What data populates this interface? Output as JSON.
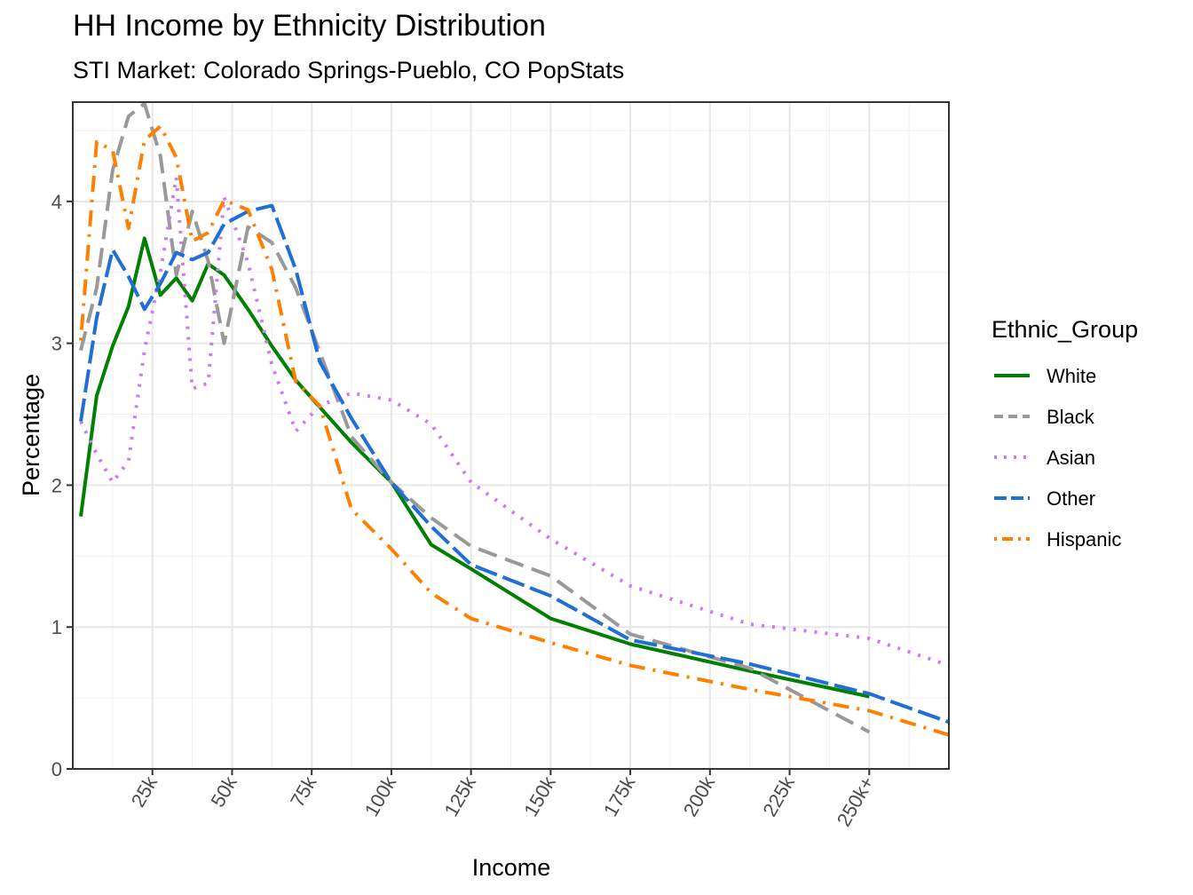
{
  "chart_data": {
    "type": "line",
    "title": "HH Income by Ethnicity Distribution",
    "subtitle": "STI Market: Colorado Springs-Pueblo, CO PopStats",
    "xlabel": "Income",
    "ylabel": "Percentage",
    "xlim": [
      0,
      250
    ],
    "ylim": [
      0,
      4.7
    ],
    "x_ticks": [
      {
        "value": 25,
        "label": "25k"
      },
      {
        "value": 50,
        "label": "50k"
      },
      {
        "value": 75,
        "label": "75k"
      },
      {
        "value": 100,
        "label": "100k"
      },
      {
        "value": 125,
        "label": "125k"
      },
      {
        "value": 150,
        "label": "150k"
      },
      {
        "value": 175,
        "label": "175k"
      },
      {
        "value": 200,
        "label": "200k"
      },
      {
        "value": 225,
        "label": "225k"
      },
      {
        "value": 250,
        "label": "250k+"
      }
    ],
    "y_ticks": [
      {
        "value": 0,
        "label": "0"
      },
      {
        "value": 1,
        "label": "1"
      },
      {
        "value": 2,
        "label": "2"
      },
      {
        "value": 3,
        "label": "3"
      },
      {
        "value": 4,
        "label": "4"
      }
    ],
    "grid": true,
    "legend_title": "Ethnic_Group",
    "legend_position": "right",
    "series": [
      {
        "name": "White",
        "color": "#008000",
        "dash": "solid",
        "points": [
          [
            2.5,
            1.78
          ],
          [
            7.5,
            2.63
          ],
          [
            12.5,
            2.98
          ],
          [
            17.5,
            3.26
          ],
          [
            22.5,
            3.74
          ],
          [
            27.5,
            3.34
          ],
          [
            32.5,
            3.46
          ],
          [
            37.5,
            3.3
          ],
          [
            42.5,
            3.56
          ],
          [
            47.5,
            3.48
          ],
          [
            55,
            3.24
          ],
          [
            62.5,
            2.98
          ],
          [
            70,
            2.74
          ],
          [
            77.5,
            2.55
          ],
          [
            87.5,
            2.3
          ],
          [
            100,
            2.02
          ],
          [
            112.5,
            1.58
          ],
          [
            125,
            1.41
          ],
          [
            150,
            1.06
          ],
          [
            175,
            0.88
          ],
          [
            212.5,
            0.69
          ],
          [
            250,
            0.51
          ]
        ]
      },
      {
        "name": "Black",
        "color": "#999999",
        "dash": "dashed",
        "points": [
          [
            2.5,
            2.95
          ],
          [
            7.5,
            3.39
          ],
          [
            12.5,
            4.22
          ],
          [
            17.5,
            4.6
          ],
          [
            22.5,
            4.69
          ],
          [
            27.5,
            4.32
          ],
          [
            32.5,
            3.48
          ],
          [
            37.5,
            3.93
          ],
          [
            42.5,
            3.58
          ],
          [
            47.5,
            3.0
          ],
          [
            55,
            3.82
          ],
          [
            62.5,
            3.71
          ],
          [
            70,
            3.39
          ],
          [
            77.5,
            2.94
          ],
          [
            87.5,
            2.34
          ],
          [
            100,
            2.02
          ],
          [
            112.5,
            1.77
          ],
          [
            125,
            1.57
          ],
          [
            150,
            1.36
          ],
          [
            175,
            0.95
          ],
          [
            212.5,
            0.71
          ],
          [
            250,
            0.26
          ]
        ]
      },
      {
        "name": "Asian",
        "color": "#CC79F2",
        "dash": "dotted",
        "points": [
          [
            2.5,
            2.45
          ],
          [
            7.5,
            2.22
          ],
          [
            12.5,
            2.02
          ],
          [
            17.5,
            2.17
          ],
          [
            22.5,
            2.95
          ],
          [
            27.5,
            3.5
          ],
          [
            32.5,
            4.17
          ],
          [
            37.5,
            2.68
          ],
          [
            42.5,
            2.72
          ],
          [
            47.5,
            4.03
          ],
          [
            55,
            3.57
          ],
          [
            62.5,
            2.85
          ],
          [
            70,
            2.38
          ],
          [
            77.5,
            2.56
          ],
          [
            87.5,
            2.65
          ],
          [
            100,
            2.6
          ],
          [
            112.5,
            2.43
          ],
          [
            125,
            2.02
          ],
          [
            150,
            1.62
          ],
          [
            175,
            1.29
          ],
          [
            212.5,
            1.02
          ],
          [
            250,
            0.92
          ],
          [
            275,
            0.73
          ]
        ]
      },
      {
        "name": "Other",
        "color": "#1F6FD6",
        "dash": "longdash",
        "points": [
          [
            2.5,
            2.45
          ],
          [
            7.5,
            3.18
          ],
          [
            12.5,
            3.66
          ],
          [
            17.5,
            3.47
          ],
          [
            22.5,
            3.24
          ],
          [
            27.5,
            3.42
          ],
          [
            32.5,
            3.64
          ],
          [
            37.5,
            3.59
          ],
          [
            42.5,
            3.64
          ],
          [
            47.5,
            3.84
          ],
          [
            55,
            3.93
          ],
          [
            62.5,
            3.97
          ],
          [
            70,
            3.52
          ],
          [
            77.5,
            2.87
          ],
          [
            87.5,
            2.47
          ],
          [
            100,
            2.02
          ],
          [
            112.5,
            1.71
          ],
          [
            125,
            1.44
          ],
          [
            150,
            1.22
          ],
          [
            175,
            0.91
          ],
          [
            212.5,
            0.74
          ],
          [
            250,
            0.53
          ],
          [
            275,
            0.33
          ]
        ]
      },
      {
        "name": "Hispanic",
        "color": "#FF8000",
        "dash": "dotdash",
        "points": [
          [
            2.5,
            3.02
          ],
          [
            7.5,
            4.42
          ],
          [
            12.5,
            4.36
          ],
          [
            17.5,
            3.81
          ],
          [
            22.5,
            4.43
          ],
          [
            27.5,
            4.53
          ],
          [
            32.5,
            4.31
          ],
          [
            37.5,
            3.72
          ],
          [
            42.5,
            3.78
          ],
          [
            47.5,
            4.01
          ],
          [
            55,
            3.94
          ],
          [
            62.5,
            3.52
          ],
          [
            70,
            2.73
          ],
          [
            77.5,
            2.56
          ],
          [
            87.5,
            1.83
          ],
          [
            100,
            1.55
          ],
          [
            112.5,
            1.24
          ],
          [
            125,
            1.06
          ],
          [
            150,
            0.89
          ],
          [
            175,
            0.73
          ],
          [
            212.5,
            0.56
          ],
          [
            250,
            0.41
          ],
          [
            275,
            0.24
          ]
        ]
      }
    ]
  }
}
